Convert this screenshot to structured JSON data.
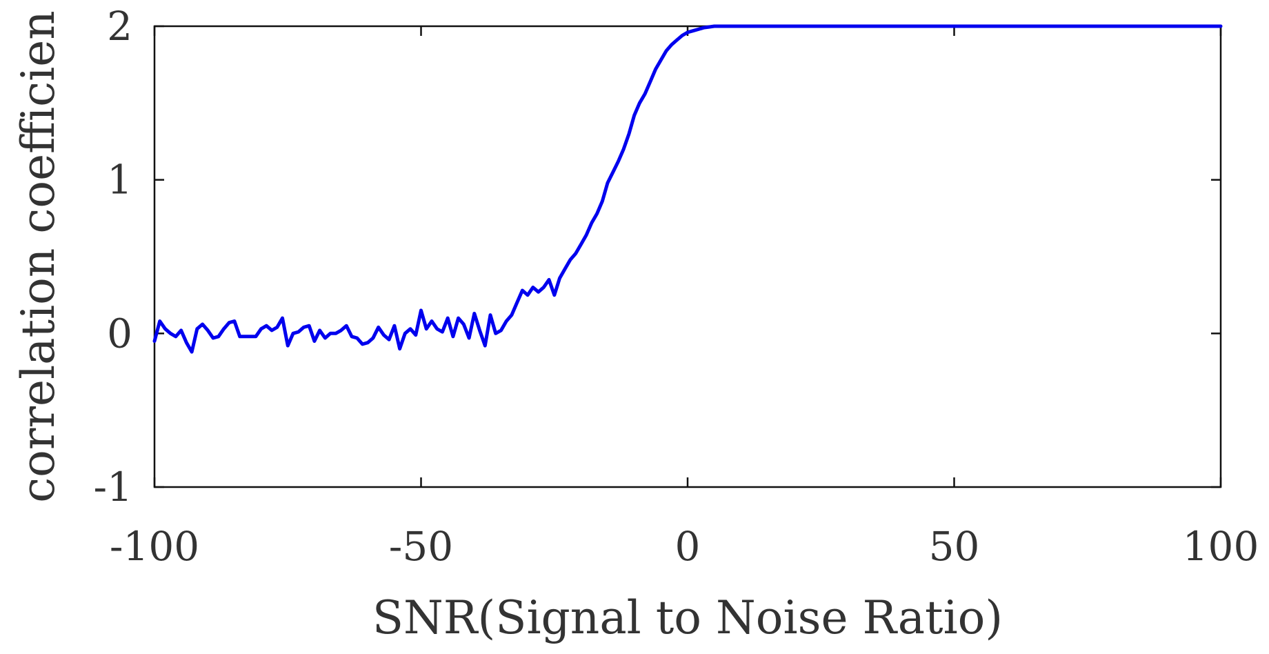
{
  "chart_data": {
    "type": "line",
    "title": "",
    "xlabel": "SNR(Signal to Noise Ratio)",
    "ylabel": "correlation coefficien",
    "xlim": [
      -100,
      100
    ],
    "ylim": [
      -1,
      2
    ],
    "xticks": [
      -100,
      -50,
      0,
      50,
      100
    ],
    "xtick_labels": [
      "-100",
      "-50",
      "0",
      "50",
      "100"
    ],
    "yticks": [
      -1,
      0,
      1,
      2
    ],
    "ytick_labels": [
      "-1",
      "0",
      "1",
      "2"
    ],
    "grid": false,
    "legend": "none",
    "series": [
      {
        "color": "#0000ee",
        "x": [
          -100,
          -99,
          -98,
          -97,
          -96,
          -95,
          -94,
          -93,
          -92,
          -91,
          -90,
          -89,
          -88,
          -87,
          -86,
          -85,
          -84,
          -83,
          -82,
          -81,
          -80,
          -79,
          -78,
          -77,
          -76,
          -75,
          -74,
          -73,
          -72,
          -71,
          -70,
          -69,
          -68,
          -67,
          -66,
          -65,
          -64,
          -63,
          -62,
          -61,
          -60,
          -59,
          -58,
          -57,
          -56,
          -55,
          -54,
          -53,
          -52,
          -51,
          -50,
          -49,
          -48,
          -47,
          -46,
          -45,
          -44,
          -43,
          -42,
          -41,
          -40,
          -39,
          -38,
          -37,
          -36,
          -35,
          -34,
          -33,
          -32,
          -31,
          -30,
          -29,
          -28,
          -27,
          -26,
          -25,
          -24,
          -23,
          -22,
          -21,
          -20,
          -19,
          -18,
          -17,
          -16,
          -15,
          -14,
          -13,
          -12,
          -11,
          -10,
          -9,
          -8,
          -7,
          -6,
          -5,
          -4,
          -3,
          -2,
          -1,
          0,
          1,
          2,
          3,
          4,
          5,
          6,
          7,
          8,
          9,
          10,
          12,
          15,
          20,
          30,
          40,
          50,
          60,
          70,
          80,
          90,
          100
        ],
        "y": [
          -0.05,
          0.08,
          0.03,
          0.0,
          -0.02,
          0.02,
          -0.06,
          -0.12,
          0.03,
          0.06,
          0.02,
          -0.03,
          -0.02,
          0.03,
          0.07,
          0.08,
          -0.02,
          -0.02,
          -0.02,
          -0.02,
          0.03,
          0.05,
          0.02,
          0.04,
          0.1,
          -0.08,
          0.0,
          0.01,
          0.04,
          0.05,
          -0.05,
          0.02,
          -0.03,
          0.0,
          0.0,
          0.02,
          0.05,
          -0.02,
          -0.03,
          -0.07,
          -0.06,
          -0.03,
          0.04,
          -0.01,
          -0.04,
          0.05,
          -0.1,
          0.0,
          0.03,
          -0.01,
          0.15,
          0.03,
          0.08,
          0.03,
          0.01,
          0.1,
          -0.02,
          0.1,
          0.06,
          -0.03,
          0.13,
          0.02,
          -0.08,
          0.12,
          0.0,
          0.02,
          0.08,
          0.12,
          0.2,
          0.28,
          0.25,
          0.3,
          0.27,
          0.3,
          0.35,
          0.25,
          0.36,
          0.42,
          0.48,
          0.52,
          0.58,
          0.64,
          0.72,
          0.78,
          0.86,
          0.98,
          1.05,
          1.12,
          1.2,
          1.3,
          1.42,
          1.5,
          1.56,
          1.64,
          1.72,
          1.78,
          1.84,
          1.88,
          1.91,
          1.94,
          1.96,
          1.97,
          1.98,
          1.99,
          1.995,
          2.0,
          2.0,
          2.0,
          2.0,
          2.0,
          2.0,
          2.0,
          2.0,
          2.0,
          2.0,
          2.0,
          2.0,
          2.0,
          2.0,
          2.0,
          2.0,
          2.0
        ]
      }
    ]
  }
}
